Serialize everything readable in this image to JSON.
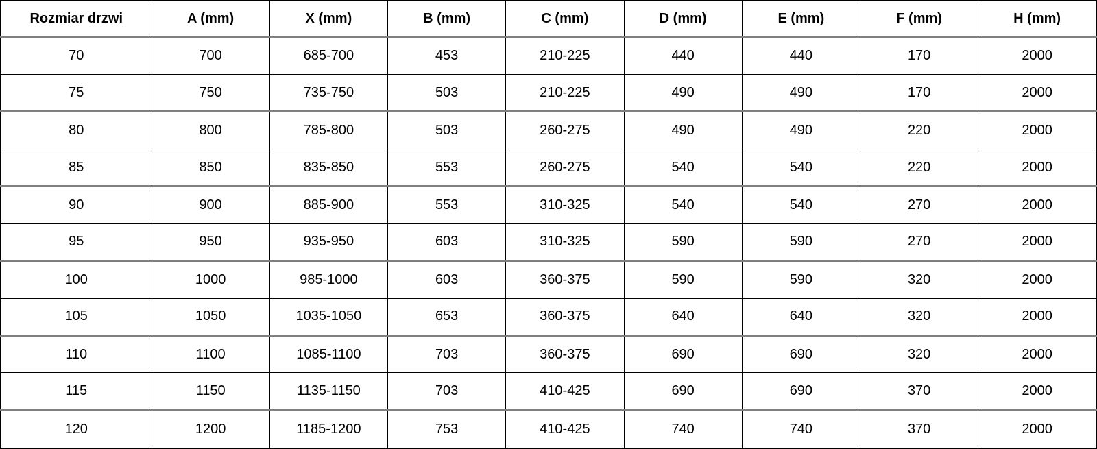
{
  "table": {
    "headers": [
      "Rozmiar drzwi",
      "A (mm)",
      "X (mm)",
      "B (mm)",
      "C (mm)",
      "D (mm)",
      "E (mm)",
      "F (mm)",
      "H (mm)"
    ],
    "rows": [
      [
        "70",
        "700",
        "685-700",
        "453",
        "210-225",
        "440",
        "440",
        "170",
        "2000"
      ],
      [
        "75",
        "750",
        "735-750",
        "503",
        "210-225",
        "490",
        "490",
        "170",
        "2000"
      ],
      [
        "80",
        "800",
        "785-800",
        "503",
        "260-275",
        "490",
        "490",
        "220",
        "2000"
      ],
      [
        "85",
        "850",
        "835-850",
        "553",
        "260-275",
        "540",
        "540",
        "220",
        "2000"
      ],
      [
        "90",
        "900",
        "885-900",
        "553",
        "310-325",
        "540",
        "540",
        "270",
        "2000"
      ],
      [
        "95",
        "950",
        "935-950",
        "603",
        "310-325",
        "590",
        "590",
        "270",
        "2000"
      ],
      [
        "100",
        "1000",
        "985-1000",
        "603",
        "360-375",
        "590",
        "590",
        "320",
        "2000"
      ],
      [
        "105",
        "1050",
        "1035-1050",
        "653",
        "360-375",
        "640",
        "640",
        "320",
        "2000"
      ],
      [
        "110",
        "1100",
        "1085-1100",
        "703",
        "360-375",
        "690",
        "690",
        "320",
        "2000"
      ],
      [
        "115",
        "1150",
        "1135-1150",
        "703",
        "410-425",
        "690",
        "690",
        "370",
        "2000"
      ],
      [
        "120",
        "1200",
        "1185-1200",
        "753",
        "410-425",
        "740",
        "740",
        "370",
        "2000"
      ]
    ]
  },
  "colors": {
    "outer_border": "#000000",
    "thin_divider": "#000000",
    "thick_divider": "#7f7f7f",
    "text": "#000000",
    "background": "#ffffff"
  }
}
